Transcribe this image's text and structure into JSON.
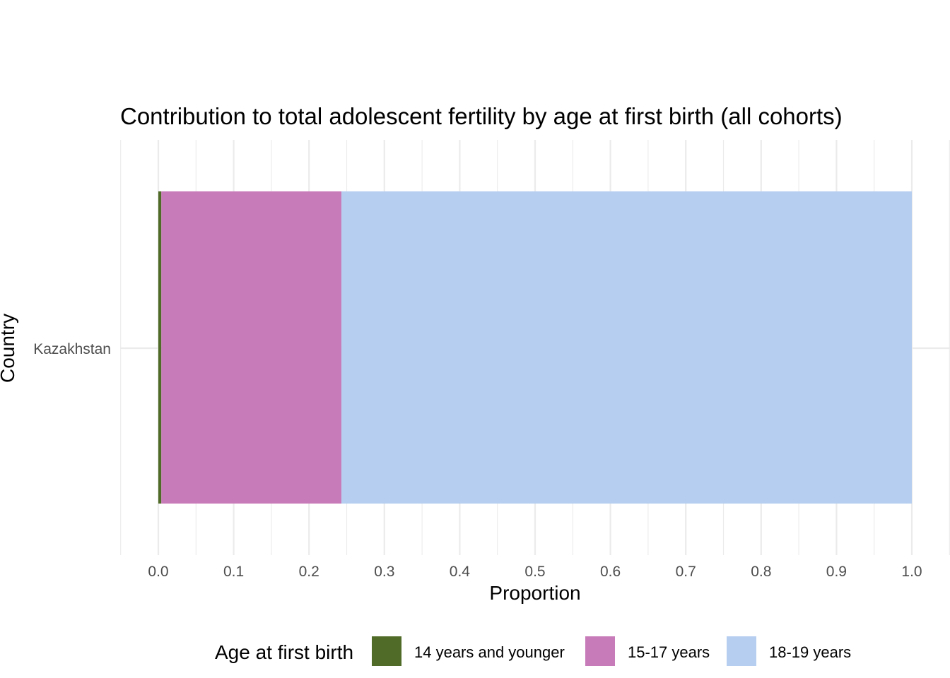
{
  "chart_data": {
    "type": "bar",
    "orientation": "horizontal",
    "stacked": true,
    "title": "Contribution to total adolescent fertility by age at first birth (all cohorts)",
    "xlabel": "Proportion",
    "ylabel": "Country",
    "categories": [
      "Kazakhstan"
    ],
    "xlim": [
      -0.05,
      1.05
    ],
    "x_ticks": [
      "0.0",
      "0.1",
      "0.2",
      "0.3",
      "0.4",
      "0.5",
      "0.6",
      "0.7",
      "0.8",
      "0.9",
      "1.0"
    ],
    "grid": true,
    "legend_position": "bottom",
    "legend_title": "Age at first birth",
    "series": [
      {
        "name": "14 years and younger",
        "color": "#4f6b27",
        "values": [
          0.004
        ]
      },
      {
        "name": "15-17 years",
        "color": "#c87bb9",
        "values": [
          0.239
        ]
      },
      {
        "name": "18-19 years",
        "color": "#b6cef0",
        "values": [
          0.757
        ]
      }
    ]
  }
}
